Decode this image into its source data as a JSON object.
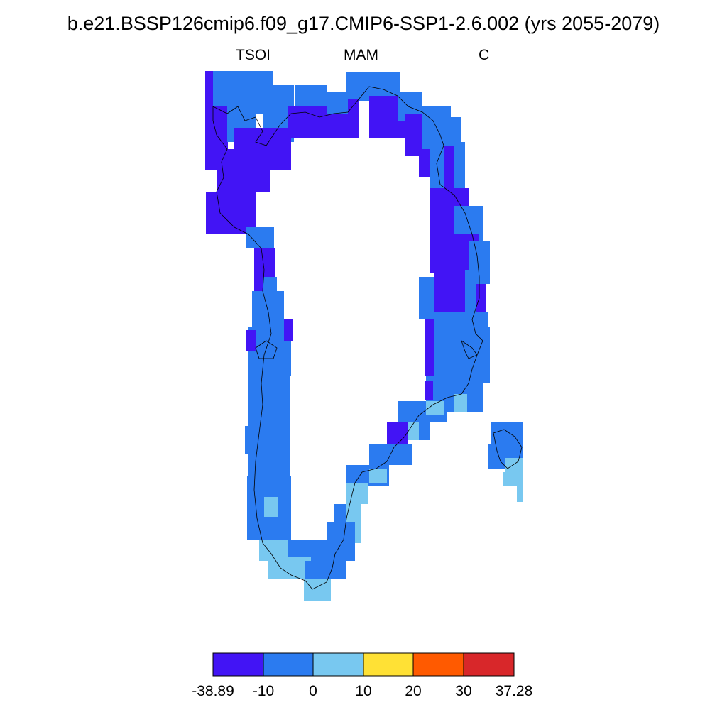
{
  "title": "b.e21.BSSP126cmip6.f09_g17.CMIP6-SSP1-2.6.002 (yrs 2055-2079)",
  "subtitle": {
    "left": "TSOI",
    "center": "MAM",
    "right": "C"
  },
  "colors": {
    "c0": "#4214f5",
    "c1": "#2b7bf0",
    "c2": "#78c8f0",
    "c3": "#ffe135",
    "c4": "#ff5a00",
    "c5": "#d8272a"
  },
  "colorbar": {
    "labels": [
      "-38.89",
      "-10",
      "0",
      "10",
      "20",
      "30",
      "37.28"
    ]
  },
  "map_data": {
    "region": "Greenland",
    "dominant_classes": [
      "-38.89 to -10",
      "-10 to 0",
      "0 to 10"
    ]
  }
}
